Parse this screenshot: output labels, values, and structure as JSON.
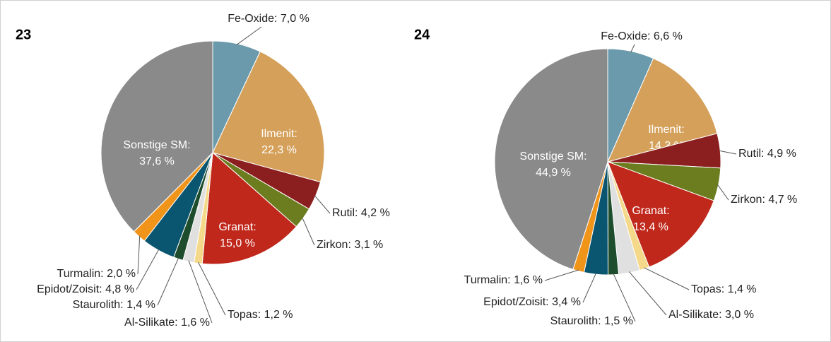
{
  "chart_data": [
    {
      "type": "pie",
      "title": "23",
      "categories": [
        "Fe-Oxide:",
        "Ilmenit:",
        "Rutil:",
        "Zirkon:",
        "Granat:",
        "Topas:",
        "Al-Silikate:",
        "Staurolith:",
        "Epidot/Zoisit:",
        "Turmalin:",
        "Sonstige SM:"
      ],
      "values": [
        7.0,
        22.3,
        4.2,
        3.1,
        15.0,
        1.2,
        1.6,
        1.4,
        4.8,
        2.0,
        37.6
      ],
      "value_labels": [
        "7,0 %",
        "22,3 %",
        "4,2 %",
        "3,1 %",
        "15,0 %",
        "1,2 %",
        "1,6 %",
        "1,4 %",
        "4,8 %",
        "2,0 %",
        "37,6 %"
      ],
      "colors": [
        "#6a9aab",
        "#d4a05a",
        "#8b1f1f",
        "#6b7d1e",
        "#c0281c",
        "#f5d98a",
        "#e0e0e0",
        "#1d4d2c",
        "#0a5570",
        "#f0941a",
        "#8a8a8a"
      ]
    },
    {
      "type": "pie",
      "title": "24",
      "categories": [
        "Fe-Oxide:",
        "Ilmenit:",
        "Rutil:",
        "Zirkon:",
        "Granat:",
        "Topas:",
        "Al-Silikate:",
        "Staurolith:",
        "Epidot/Zoisit:",
        "Turmalin:",
        "Sonstige SM:"
      ],
      "values": [
        6.6,
        14.3,
        4.9,
        4.7,
        13.4,
        1.4,
        3.0,
        1.5,
        3.4,
        1.6,
        44.9
      ],
      "value_labels": [
        "6,6 %",
        "14,3 %",
        "4,9 %",
        "4,7 %",
        "13,4 %",
        "1,4 %",
        "3,0 %",
        "1,5 %",
        "3,4 %",
        "1,6 %",
        "44,9 %"
      ],
      "colors": [
        "#6a9aab",
        "#d4a05a",
        "#8b1f1f",
        "#6b7d1e",
        "#c0281c",
        "#f5d98a",
        "#e0e0e0",
        "#1d4d2c",
        "#0a5570",
        "#f0941a",
        "#8a8a8a"
      ]
    }
  ]
}
